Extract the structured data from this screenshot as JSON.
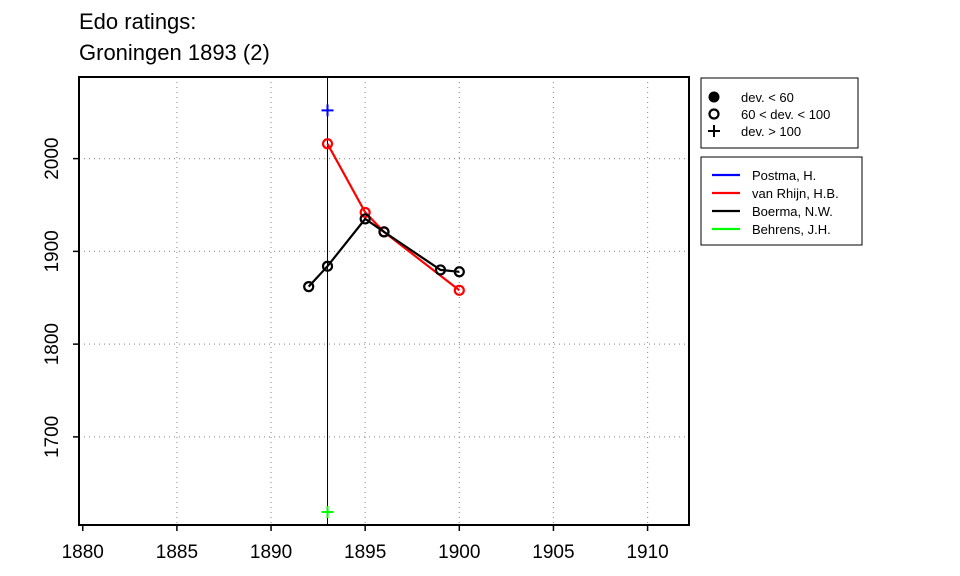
{
  "title": [
    "Edo ratings:",
    "Groningen 1893 (2)"
  ],
  "chart_data": {
    "type": "line",
    "title": "Edo ratings: Groningen 1893 (2)",
    "xlabel": "",
    "ylabel": "",
    "xlim": [
      1879.8,
      1912.2
    ],
    "ylim": [
      1605,
      2088
    ],
    "xticks": [
      1880,
      1885,
      1890,
      1895,
      1900,
      1905,
      1910
    ],
    "yticks": [
      1700,
      1800,
      1900,
      2000
    ],
    "grid": true,
    "marker_year": 1893,
    "series": [
      {
        "name": "Postma, H.",
        "color": "#0000ff",
        "points": [
          {
            "x": 1893,
            "y": 2052,
            "marker": "plus"
          }
        ]
      },
      {
        "name": "van Rhijn, H.B.",
        "color": "#ff0000",
        "points": [
          {
            "x": 1893,
            "y": 2016,
            "marker": "circle-open"
          },
          {
            "x": 1895,
            "y": 1942,
            "marker": "circle-open"
          },
          {
            "x": 1896,
            "y": 1921,
            "marker": "circle-open"
          },
          {
            "x": 1900,
            "y": 1858,
            "marker": "circle-open"
          }
        ]
      },
      {
        "name": "Boerma, N.W.",
        "color": "#000000",
        "points": [
          {
            "x": 1892,
            "y": 1862,
            "marker": "circle-open"
          },
          {
            "x": 1893,
            "y": 1884,
            "marker": "circle-open"
          },
          {
            "x": 1895,
            "y": 1935,
            "marker": "circle-open"
          },
          {
            "x": 1896,
            "y": 1921,
            "marker": "circle-open"
          },
          {
            "x": 1899,
            "y": 1880,
            "marker": "circle-open"
          },
          {
            "x": 1900,
            "y": 1878,
            "marker": "circle-open"
          }
        ]
      },
      {
        "name": "Behrens, J.H.",
        "color": "#00ff00",
        "points": [
          {
            "x": 1893,
            "y": 1619,
            "marker": "plus"
          }
        ]
      }
    ],
    "marker_legend": [
      {
        "marker": "circle-filled",
        "label": "dev. < 60"
      },
      {
        "marker": "circle-open",
        "label": "60 < dev. < 100"
      },
      {
        "marker": "plus",
        "label": "dev. > 100"
      }
    ],
    "legend_placement": "right"
  }
}
